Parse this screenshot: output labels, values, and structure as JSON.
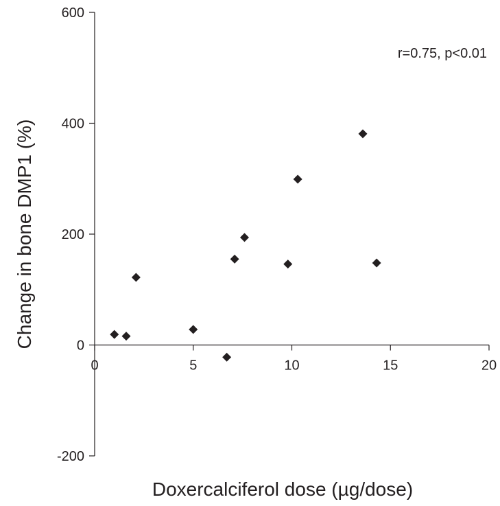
{
  "chart_data": {
    "type": "scatter",
    "title": "",
    "xlabel": "Doxercalciferol dose (µg/dose)",
    "ylabel": "Change in bone DMP1 (%)",
    "xlim": [
      0,
      20
    ],
    "ylim": [
      -200,
      600
    ],
    "x_ticks": [
      0,
      5,
      10,
      15,
      20
    ],
    "x_tick_labels": [
      "0",
      "5",
      "10",
      "15",
      "20"
    ],
    "y_ticks": [
      -200,
      0,
      200,
      400,
      600
    ],
    "y_tick_labels": [
      "-200",
      "0",
      "200",
      "400",
      "600"
    ],
    "grid": false,
    "legend": "none",
    "annotation": "r=0.75, p<0.01",
    "marker": "diamond",
    "marker_color": "#231f20",
    "points": [
      {
        "x": 1.0,
        "y": 19
      },
      {
        "x": 1.6,
        "y": 16
      },
      {
        "x": 2.1,
        "y": 122
      },
      {
        "x": 5.0,
        "y": 28
      },
      {
        "x": 6.7,
        "y": -22
      },
      {
        "x": 7.1,
        "y": 155
      },
      {
        "x": 7.6,
        "y": 194
      },
      {
        "x": 9.8,
        "y": 146
      },
      {
        "x": 10.3,
        "y": 299
      },
      {
        "x": 13.6,
        "y": 381
      },
      {
        "x": 14.3,
        "y": 148
      }
    ]
  }
}
